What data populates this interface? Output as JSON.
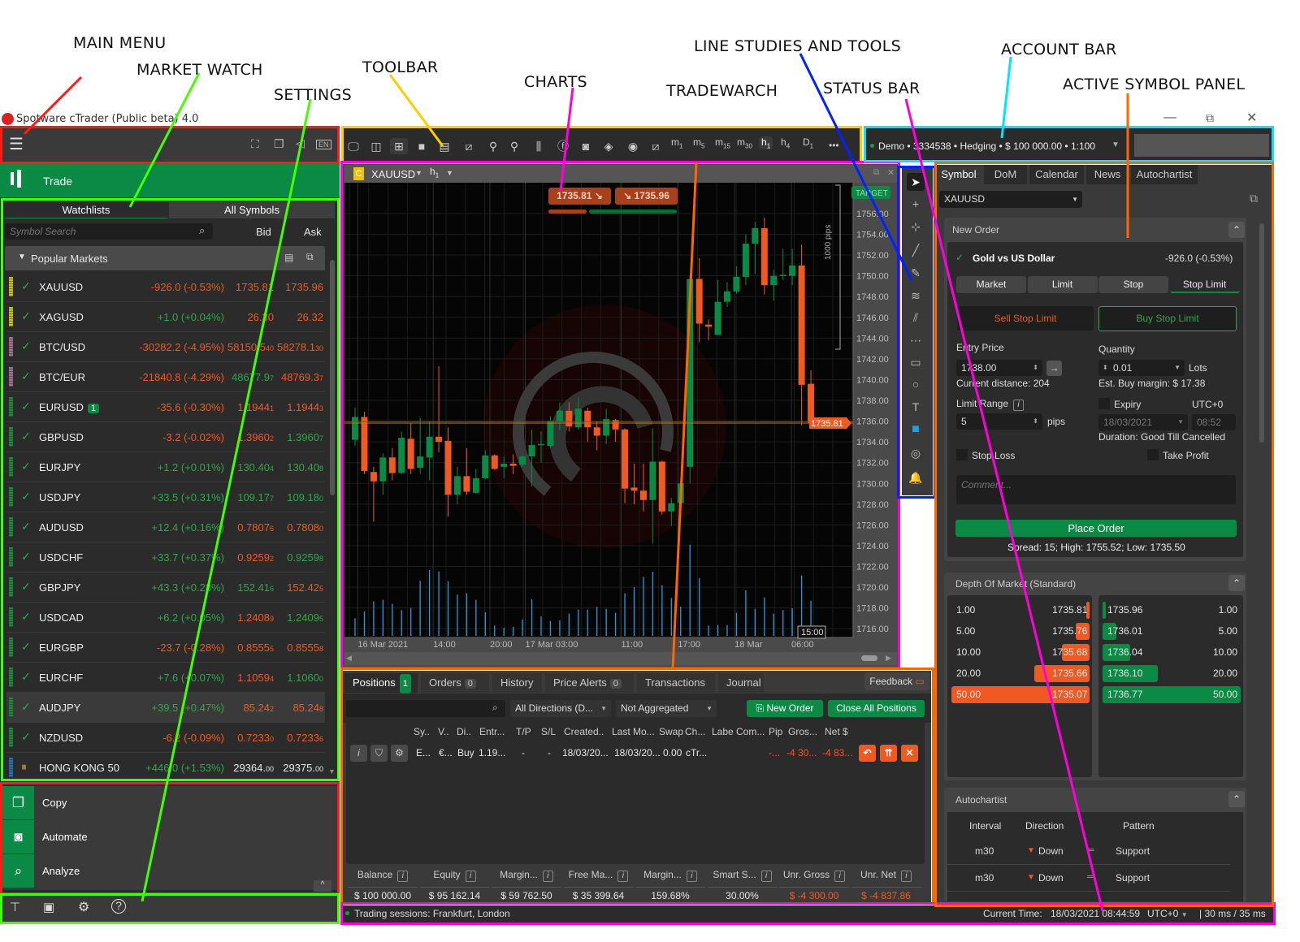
{
  "annotations": [
    {
      "label": "MAIN MENU",
      "color": "#ff1a1a"
    },
    {
      "label": "MARKET WATCH",
      "color": "#44ff00"
    },
    {
      "label": "SETTINGS",
      "color": "#44ff00"
    },
    {
      "label": "TOOLBAR",
      "color": "#ffcc00"
    },
    {
      "label": "CHARTS",
      "color": "#ff00dd"
    },
    {
      "label": "TRADEWARCH",
      "color": "#ff6600"
    },
    {
      "label": "LINE STUDIES AND TOOLS",
      "color": "#0022ff"
    },
    {
      "label": "STATUS BAR",
      "color": "#ff00dd"
    },
    {
      "label": "ACCOUNT BAR",
      "color": "#00e5ff"
    },
    {
      "label": "ACTIVE SYMBOL PANEL",
      "color": "#ff6600"
    }
  ],
  "window": {
    "title": "Spotware cTrader (Public beta) 4.0",
    "controls": [
      "minimize",
      "restore",
      "close"
    ]
  },
  "colors": {
    "sell": "#f05a22",
    "buy": "#0a8a44",
    "bg": "#2b2b2b",
    "panel": "#3a3a3a"
  },
  "left": {
    "menu_icons": [
      "hamburger-icon",
      "fullscreen-icon",
      "windows-icon",
      "sound-icon",
      "language-en-icon"
    ],
    "lang": "EN",
    "trade_label": "Trade",
    "tabs": [
      "Watchlists",
      "All Symbols"
    ],
    "search_placeholder": "Symbol Search",
    "col_bid": "Bid",
    "col_ask": "Ask",
    "group": "Popular Markets",
    "rows": [
      {
        "sym": "XAUUSD",
        "chg": "-926.0 (-0.53%)",
        "cc": "o",
        "bid": "1735.81",
        "bp": "",
        "bc": "o",
        "ask": "1735.96",
        "ap": "",
        "ac": "o",
        "strip": "#c8c020"
      },
      {
        "sym": "XAGUSD",
        "chg": "+1.0 (+0.04%)",
        "cc": "g",
        "bid": "26.30",
        "bp": "",
        "bc": "o",
        "ask": "26.32",
        "ap": "",
        "ac": "o",
        "strip": "#c8c020"
      },
      {
        "sym": "BTC/USD",
        "chg": "-30282.2 (-4.95%)",
        "cc": "o",
        "bid": "58150.5",
        "bp": "40",
        "bc": "o",
        "ask": "58278.1",
        "ap": "30",
        "ac": "o",
        "strip": "#a07090"
      },
      {
        "sym": "BTC/EUR",
        "chg": "-21840.8 (-4.29%)",
        "cc": "o",
        "bid": "48677.9",
        "bp": "7",
        "bc": "g",
        "ask": "48769.3",
        "ap": "7",
        "ac": "o",
        "strip": "#a07090"
      },
      {
        "sym": "EURUSD",
        "badge": "1",
        "chg": "-35.6 (-0.30%)",
        "cc": "o",
        "bid": "1.1944",
        "bp": "1",
        "bc": "o",
        "ask": "1.1944",
        "ap": "3",
        "ac": "o",
        "strip": "#1f8a3a"
      },
      {
        "sym": "GBPUSD",
        "chg": "-3.2 (-0.02%)",
        "cc": "o",
        "bid": "1.3960",
        "bp": "2",
        "bc": "o",
        "ask": "1.3960",
        "ap": "7",
        "ac": "g",
        "strip": "#1f8a3a"
      },
      {
        "sym": "EURJPY",
        "chg": "+1.2 (+0.01%)",
        "cc": "g",
        "bid": "130.40",
        "bp": "4",
        "bc": "g",
        "ask": "130.40",
        "ap": "8",
        "ac": "g",
        "strip": "#1f8a3a"
      },
      {
        "sym": "USDJPY",
        "chg": "+33.5 (+0.31%)",
        "cc": "g",
        "bid": "109.17",
        "bp": "7",
        "bc": "g",
        "ask": "109.18",
        "ap": "0",
        "ac": "g",
        "strip": "#1f8a3a"
      },
      {
        "sym": "AUDUSD",
        "chg": "+12.4 (+0.16%)",
        "cc": "g",
        "bid": "0.7807",
        "bp": "6",
        "bc": "o",
        "ask": "0.7808",
        "ap": "0",
        "ac": "o",
        "strip": "#1f8a3a"
      },
      {
        "sym": "USDCHF",
        "chg": "+33.7 (+0.37%)",
        "cc": "g",
        "bid": "0.9259",
        "bp": "2",
        "bc": "o",
        "ask": "0.9259",
        "ap": "8",
        "ac": "g",
        "strip": "#1f8a3a"
      },
      {
        "sym": "GBPJPY",
        "chg": "+43.3 (+0.28%)",
        "cc": "g",
        "bid": "152.41",
        "bp": "6",
        "bc": "g",
        "ask": "152.42",
        "ap": "5",
        "ac": "o",
        "strip": "#1f8a3a"
      },
      {
        "sym": "USDCAD",
        "chg": "+6.2 (+0.05%)",
        "cc": "g",
        "bid": "1.2408",
        "bp": "9",
        "bc": "o",
        "ask": "1.2409",
        "ap": "5",
        "ac": "g",
        "strip": "#1f8a3a"
      },
      {
        "sym": "EURGBP",
        "chg": "-23.7 (-0.28%)",
        "cc": "o",
        "bid": "0.8555",
        "bp": "5",
        "bc": "o",
        "ask": "0.8555",
        "ap": "8",
        "ac": "o",
        "strip": "#1f8a3a"
      },
      {
        "sym": "EURCHF",
        "chg": "+7.6 (+0.07%)",
        "cc": "g",
        "bid": "1.1059",
        "bp": "4",
        "bc": "o",
        "ask": "1.1060",
        "ap": "0",
        "ac": "g",
        "strip": "#1f8a3a"
      },
      {
        "sym": "AUDJPY",
        "chg": "+39.5 (+0.47%)",
        "cc": "g",
        "bid": "85.24",
        "bp": "2",
        "bc": "o",
        "ask": "85.24",
        "ap": "8",
        "ac": "o",
        "strip": "#1f8a3a",
        "selected": true
      },
      {
        "sym": "NZDUSD",
        "chg": "-6.2 (-0.09%)",
        "cc": "o",
        "bid": "0.7233",
        "bp": "0",
        "bc": "o",
        "ask": "0.7233",
        "ap": "6",
        "ac": "o",
        "strip": "#1f8a3a"
      },
      {
        "sym": "HONG KONG 50",
        "chg": "+446.0 (+1.53%)",
        "cc": "g",
        "bid": "29364.",
        "bp": "00",
        "bc": "w",
        "ask": "29375.",
        "ap": "00",
        "ac": "w",
        "strip": "#2a70b0",
        "paused": true
      }
    ],
    "apps": [
      "Copy",
      "Automate",
      "Analyze"
    ],
    "settings_icons": [
      "trading-room-icon",
      "wallet-icon",
      "gear-icon",
      "help-icon"
    ]
  },
  "toolbar": {
    "icons": [
      "new-chart-icon",
      "layout-icon",
      "multi-chart-icon",
      "single-chart-icon",
      "split-chart-icon",
      "add-indicator-icon",
      "zoom-out-icon",
      "zoom-in-icon",
      "chart-type-icon",
      "cbot-icon",
      "automate-icon",
      "layers-icon",
      "eye-icon",
      "chart-settings-icon"
    ],
    "timeframes": [
      {
        "l": "m",
        "s": "1"
      },
      {
        "l": "m",
        "s": "5"
      },
      {
        "l": "m",
        "s": "15"
      },
      {
        "l": "m",
        "s": "30"
      },
      {
        "l": "h",
        "s": "1",
        "active": true
      },
      {
        "l": "h",
        "s": "4"
      },
      {
        "l": "D",
        "s": "1"
      }
    ],
    "more": "•••"
  },
  "account": {
    "text": "Demo • 3334538 • Hedging • $ 100 000.00 • 1:100"
  },
  "chart": {
    "symbol": "XAUUSD",
    "timeframe_l": "h",
    "timeframe_s": "1",
    "badge": "C",
    "sell_price": "1735.81",
    "buy_price": "1735.96",
    "target_label": "TARGET",
    "ruler_label": "1000 pips",
    "crosshair_time": "15:00",
    "price_tag": "1735.81"
  },
  "chart_data": {
    "type": "candlestick",
    "symbol": "XAUUSD",
    "timeframe": "h1",
    "ylim": [
      1715,
      1757
    ],
    "y_ticks": [
      "1756.00",
      "1754.00",
      "1752.00",
      "1750.00",
      "1748.00",
      "1746.00",
      "1744.00",
      "1742.00",
      "1740.00",
      "1738.00",
      "1736.00",
      "1734.00",
      "1732.00",
      "1730.00",
      "1728.00",
      "1726.00",
      "1724.00",
      "1722.00",
      "1720.00",
      "1718.00",
      "1716.00"
    ],
    "x_ticks": [
      "16 Mar 2021",
      "14:00",
      "20:00",
      "17 Mar 03:00",
      "11:00",
      "17:00",
      "18 Mar",
      "06:00"
    ],
    "current_bid": 1735.81,
    "current_ask": 1735.96,
    "ohlc": [
      [
        1734.2,
        1737.3,
        1733.6,
        1736.4
      ],
      [
        1736.4,
        1736.9,
        1730.9,
        1731.2
      ],
      [
        1731.1,
        1731.6,
        1726.3,
        1730.2
      ],
      [
        1730.2,
        1732.9,
        1728.9,
        1732.5
      ],
      [
        1732.5,
        1733.4,
        1730.3,
        1731.0
      ],
      [
        1731.0,
        1735.0,
        1730.9,
        1734.4
      ],
      [
        1734.3,
        1735.8,
        1730.9,
        1731.4
      ],
      [
        1731.5,
        1736.3,
        1730.9,
        1732.6
      ],
      [
        1732.5,
        1736.0,
        1730.3,
        1734.5
      ],
      [
        1734.5,
        1741.3,
        1733.0,
        1734.0
      ],
      [
        1734.1,
        1735.4,
        1726.8,
        1728.9
      ],
      [
        1728.9,
        1731.6,
        1728.0,
        1730.7
      ],
      [
        1730.7,
        1733.4,
        1728.9,
        1729.2
      ],
      [
        1729.1,
        1731.4,
        1729.0,
        1730.5
      ],
      [
        1730.5,
        1733.2,
        1730.4,
        1732.7
      ],
      [
        1732.7,
        1732.8,
        1731.3,
        1731.4
      ],
      [
        1731.6,
        1732.6,
        1730.5,
        1731.9
      ],
      [
        1731.9,
        1732.8,
        1730.9,
        1731.7
      ],
      [
        1731.8,
        1732.7,
        1731.6,
        1732.6
      ],
      [
        1732.6,
        1735.2,
        1729.7,
        1733.7
      ],
      [
        1733.7,
        1735.0,
        1732.0,
        1733.8
      ],
      [
        1733.6,
        1736.5,
        1733.4,
        1736.0
      ],
      [
        1736.0,
        1737.8,
        1735.1,
        1737.0
      ],
      [
        1737.0,
        1737.8,
        1735.0,
        1735.5
      ],
      [
        1735.4,
        1738.3,
        1735.2,
        1737.2
      ],
      [
        1737.0,
        1737.3,
        1734.0,
        1735.4
      ],
      [
        1735.4,
        1736.0,
        1733.2,
        1734.6
      ],
      [
        1734.6,
        1737.2,
        1733.8,
        1736.2
      ],
      [
        1736.1,
        1736.2,
        1734.0,
        1735.2
      ],
      [
        1735.2,
        1735.3,
        1728.1,
        1729.5
      ],
      [
        1729.6,
        1731.9,
        1728.0,
        1729.3
      ],
      [
        1729.3,
        1731.9,
        1727.3,
        1728.4
      ],
      [
        1728.4,
        1735.3,
        1724.2,
        1732.1
      ],
      [
        1732.1,
        1732.2,
        1727.0,
        1727.3
      ],
      [
        1727.3,
        1728.6,
        1725.9,
        1728.1
      ],
      [
        1728.1,
        1730.3,
        1726.6,
        1730.0
      ],
      [
        1731.6,
        1750.0,
        1730.0,
        1749.7
      ],
      [
        1749.7,
        1751.7,
        1743.6,
        1745.4
      ],
      [
        1745.3,
        1745.8,
        1743.8,
        1745.1
      ],
      [
        1744.3,
        1749.6,
        1744.3,
        1747.5
      ],
      [
        1747.5,
        1749.4,
        1747.0,
        1748.5
      ],
      [
        1748.5,
        1750.9,
        1748.3,
        1749.9
      ],
      [
        1749.9,
        1754.0,
        1749.1,
        1753.1
      ],
      [
        1753.1,
        1755.2,
        1750.2,
        1754.6
      ],
      [
        1754.6,
        1755.6,
        1748.2,
        1749.1
      ],
      [
        1749.1,
        1750.6,
        1747.6,
        1750.0
      ],
      [
        1750.0,
        1752.6,
        1749.6,
        1750.1
      ],
      [
        1750.0,
        1752.6,
        1749.1,
        1751.0
      ],
      [
        1751.0,
        1753.0,
        1735.6,
        1739.5
      ],
      [
        1739.6,
        1740.9,
        1735.8,
        1735.8
      ]
    ],
    "volume": [
      65,
      90,
      127,
      133,
      118,
      95,
      103,
      203,
      243,
      238,
      202,
      152,
      157,
      133,
      87,
      38,
      30,
      33,
      60,
      135,
      72,
      55,
      57,
      82,
      97,
      97,
      107,
      100,
      85,
      157,
      180,
      218,
      237,
      187,
      140,
      108,
      337,
      213,
      38,
      40,
      40,
      85,
      168,
      100,
      142,
      82,
      95,
      102,
      223,
      130
    ]
  },
  "tools": [
    "select-cursor-icon",
    "crosshair-icon",
    "measure-icon",
    "trend-line-icon",
    "pencil-icon",
    "fibonacci-icon",
    "pitchfork-icon",
    "grid-icon",
    "rectangle-icon",
    "ellipse-icon",
    "text-icon",
    "color-swatch-icon",
    "camera-icon",
    "bell-icon"
  ],
  "tradewatch": {
    "tabs": [
      {
        "l": "Positions",
        "n": "1",
        "green": true
      },
      {
        "l": "Orders",
        "n": "0"
      },
      {
        "l": "History"
      },
      {
        "l": "Price Alerts",
        "n": "0"
      },
      {
        "l": "Transactions"
      },
      {
        "l": "Journal"
      }
    ],
    "feedback": "Feedback",
    "direction": "All Directions (D...",
    "aggregation": "Not Aggregated",
    "new_order": "New Order",
    "close_all": "Close All Positions",
    "columns": [
      "Sy..",
      "V..",
      "Di..",
      "Entr...",
      "T/P",
      "S/L",
      "Created..",
      "Last Mo...",
      "Swap",
      "Ch...",
      "Labe",
      "Com...",
      "Pip",
      "Gros...",
      "Net $"
    ],
    "row": [
      "E...",
      "€...",
      "Buy",
      "1.19...",
      "-",
      "-",
      "18/03/20...",
      "18/03/20...",
      "0.00",
      "cTr...",
      "",
      "",
      "-...",
      "-4 30...",
      "-4 83..."
    ],
    "summary": [
      {
        "h": "Balance",
        "v": "$ 100 000.00",
        "c": "w"
      },
      {
        "h": "Equity",
        "v": "$ 95 162.14",
        "c": "w"
      },
      {
        "h": "Margin...",
        "v": "$ 59 762.50",
        "c": "w"
      },
      {
        "h": "Free Ma...",
        "v": "$ 35 399.64",
        "c": "w"
      },
      {
        "h": "Margin...",
        "v": "159.68%",
        "c": "w"
      },
      {
        "h": "Smart S...",
        "v": "30.00%",
        "c": "w"
      },
      {
        "h": "Unr. Gross",
        "v": "$ -4 300.00",
        "c": "o"
      },
      {
        "h": "Unr. Net",
        "v": "$ -4 837.86",
        "c": "o"
      }
    ]
  },
  "right": {
    "tabs": [
      "Symbol",
      "DoM",
      "Calendar",
      "News",
      "Autochartist"
    ],
    "symbol": "XAUUSD",
    "new_order": "New Order",
    "symbol_name": "Gold vs US Dollar",
    "symbol_change": "-926.0 (-0.53%)",
    "order_types": [
      "Market",
      "Limit",
      "Stop",
      "Stop Limit"
    ],
    "sell_btn": "Sell Stop Limit",
    "buy_btn": "Buy Stop Limit",
    "entry_label": "Entry Price",
    "entry_value": "1738.00",
    "distance": "Current distance: 204",
    "qty_label": "Quantity",
    "qty_value": "0.01",
    "qty_unit": "Lots",
    "margin": "Est. Buy margin: $ 17.38",
    "range_label": "Limit Range",
    "range_value": "5",
    "range_unit": "pips",
    "expiry_label": "Expiry",
    "tz": "UTC+0",
    "expiry_date": "18/03/2021",
    "expiry_time": "08:52",
    "duration": "Duration: Good Till Cancelled",
    "stop_loss": "Stop Loss",
    "take_profit": "Take Profit",
    "comment_placeholder": "Comment...",
    "place_order": "Place Order",
    "spread_info": "Spread: 15; High: 1755.52; Low: 1735.50",
    "dom_title": "Depth Of Market (Standard)",
    "dom_bids": [
      {
        "v": "1.00",
        "p": "1735.81",
        "f": 0.02
      },
      {
        "v": "5.00",
        "p": "1735.76",
        "f": 0.1
      },
      {
        "v": "10.00",
        "p": "1735.68",
        "f": 0.2
      },
      {
        "v": "20.00",
        "p": "1735.66",
        "f": 0.4
      },
      {
        "v": "50.00",
        "p": "1735.07",
        "f": 1
      }
    ],
    "dom_asks": [
      {
        "v": "1.00",
        "p": "1735.96",
        "f": 0.02
      },
      {
        "v": "5.00",
        "p": "1736.01",
        "f": 0.1
      },
      {
        "v": "10.00",
        "p": "1736.04",
        "f": 0.2
      },
      {
        "v": "20.00",
        "p": "1736.10",
        "f": 0.4
      },
      {
        "v": "50.00",
        "p": "1736.77",
        "f": 1
      }
    ],
    "auto_title": "Autochartist",
    "auto_cols": [
      "Interval",
      "Direction",
      "Pattern"
    ],
    "auto_rows": [
      {
        "i": "m30",
        "d": "Down",
        "p": "Support"
      },
      {
        "i": "m30",
        "d": "Down",
        "p": "Support"
      }
    ]
  },
  "status": {
    "sessions": "Trading sessions: Frankfurt, London",
    "time_label": "Current Time:",
    "time": "18/03/2021 08:44:59",
    "tz": "UTC+0",
    "latency": "| 30 ms / 35 ms"
  }
}
